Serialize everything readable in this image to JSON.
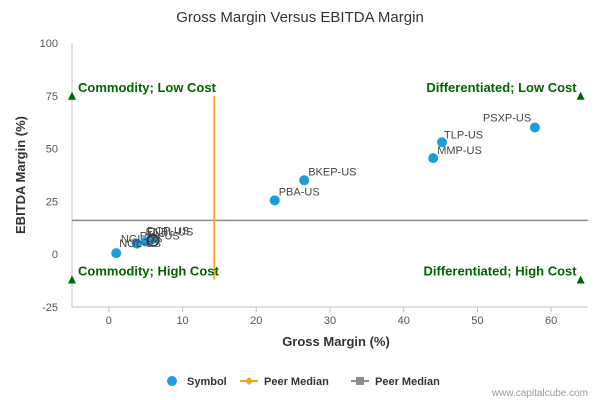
{
  "chart_data": {
    "type": "scatter",
    "title": "Gross Margin Versus EBITDA Margin",
    "xlabel": "Gross Margin (%)",
    "ylabel": "EBITDA Margin (%)",
    "xlim": [
      -5,
      65
    ],
    "ylim": [
      -25,
      100
    ],
    "xticks": [
      0,
      10,
      20,
      30,
      40,
      50,
      60
    ],
    "yticks": [
      -25,
      0,
      25,
      50,
      75,
      100
    ],
    "grid": false,
    "points": [
      {
        "label": "PSXP-US",
        "x": 57.8,
        "y": 60
      },
      {
        "label": "TLP-US",
        "x": 45.2,
        "y": 53
      },
      {
        "label": "MMP-US",
        "x": 44.0,
        "y": 45.5
      },
      {
        "label": "BKEP-US",
        "x": 26.5,
        "y": 35
      },
      {
        "label": "PBA-US",
        "x": 22.5,
        "y": 25.5
      },
      {
        "label": "DCP-US",
        "x": 6.0,
        "y": 7.5
      },
      {
        "label": "ENBL-US",
        "x": 5.8,
        "y": 7.0
      },
      {
        "label": "PAA-US",
        "x": 5.0,
        "y": 6.0
      },
      {
        "label": "NGL-US",
        "x": 3.8,
        "y": 5.0
      },
      {
        "label": "NGL-US",
        "x": 1.0,
        "y": 0.5
      }
    ],
    "highlight": {
      "x": 6.0,
      "y": 6.5
    },
    "peer_median_x": 14.3,
    "peer_median_y": 16,
    "colors": {
      "symbol": "#1b9de2",
      "peer_median_x": "#f5a623",
      "peer_median_y": "#8c8c8c",
      "quadrant": "#006400"
    },
    "quadrant_labels": {
      "top_left": "Commodity; Low Cost",
      "top_right": "Differentiated; Low Cost",
      "bottom_left": "Commodity; High Cost",
      "bottom_right": "Differentiated; High Cost"
    },
    "legend": [
      {
        "name": "Symbol",
        "marker": "circle"
      },
      {
        "name": "Peer Median",
        "marker": "diamond-line"
      },
      {
        "name": "Peer Median",
        "marker": "square-line"
      }
    ],
    "legend_position": "bottom"
  },
  "credit": "www.capitalcube.com"
}
